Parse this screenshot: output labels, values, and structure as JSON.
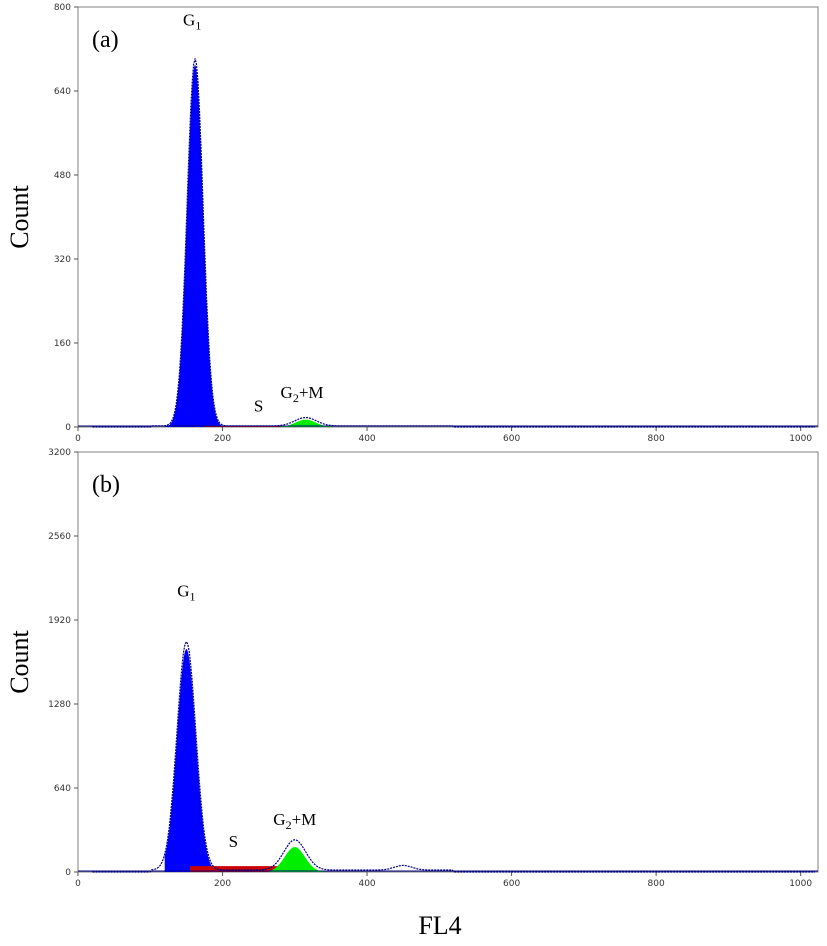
{
  "xlabel": "FL4",
  "chart_data": [
    {
      "type": "area",
      "panel_label": "(a)",
      "ylabel": "Count",
      "xlim": [
        0,
        1024
      ],
      "ylim": [
        0,
        800
      ],
      "xticks": [
        "0",
        "200",
        "400",
        "600",
        "800",
        "1000"
      ],
      "xtick_values": [
        0,
        200,
        400,
        600,
        800,
        1000
      ],
      "yticks": [
        "0",
        "160",
        "320",
        "480",
        "640",
        "800"
      ],
      "ytick_values": [
        0,
        160,
        320,
        480,
        640,
        800
      ],
      "annotations": [
        {
          "base": "G",
          "sub": "1",
          "suffix": "",
          "x": 158,
          "y": 765
        },
        {
          "base": "S",
          "sub": "",
          "suffix": "",
          "x": 250,
          "y": 30
        },
        {
          "base": "G",
          "sub": "2",
          "suffix": "+M",
          "x": 310,
          "y": 55
        }
      ],
      "series": [
        {
          "name": "G1",
          "color": "#0000ff",
          "kind": "gauss",
          "mu": 162,
          "sigma": 11,
          "amp": 690,
          "xmin": 120,
          "xmax": 205
        },
        {
          "name": "S",
          "color": "#cc0000",
          "kind": "flat",
          "xmin": 175,
          "xmax": 300,
          "value": 2
        },
        {
          "name": "G2+M",
          "color": "#00ee00",
          "kind": "gauss",
          "mu": 315,
          "sigma": 14,
          "amp": 14,
          "xmin": 280,
          "xmax": 352
        }
      ],
      "outline": {
        "color": "#000080",
        "peaks": [
          {
            "mu": 162,
            "sigma": 11,
            "amp": 700
          },
          {
            "mu": 315,
            "sigma": 15,
            "amp": 16
          }
        ],
        "baseline": 2
      }
    },
    {
      "type": "area",
      "panel_label": "(b)",
      "ylabel": "Count",
      "xlim": [
        0,
        1024
      ],
      "ylim": [
        0,
        3200
      ],
      "xticks": [
        "0",
        "200",
        "400",
        "600",
        "800",
        "1000"
      ],
      "xtick_values": [
        0,
        200,
        400,
        600,
        800,
        1000
      ],
      "yticks": [
        "0",
        "640",
        "1280",
        "1920",
        "2560",
        "3200"
      ],
      "ytick_values": [
        0,
        640,
        1280,
        1920,
        2560,
        3200
      ],
      "annotations": [
        {
          "base": "G",
          "sub": "1",
          "suffix": "",
          "x": 150,
          "y": 2100
        },
        {
          "base": "S",
          "sub": "",
          "suffix": "",
          "x": 215,
          "y": 190
        },
        {
          "base": "G",
          "sub": "2",
          "suffix": "+M",
          "x": 300,
          "y": 360
        }
      ],
      "series": [
        {
          "name": "G1",
          "color": "#0000ff",
          "kind": "gauss",
          "mu": 150,
          "sigma": 13,
          "amp": 1700,
          "xmin": 120,
          "xmax": 190
        },
        {
          "name": "S",
          "color": "#cc0000",
          "kind": "flat",
          "xmin": 155,
          "xmax": 300,
          "value": 45
        },
        {
          "name": "G2+M",
          "color": "#00ee00",
          "kind": "gauss",
          "mu": 300,
          "sigma": 14,
          "amp": 190,
          "xmin": 265,
          "xmax": 340
        }
      ],
      "outline": {
        "color": "#000080",
        "peaks": [
          {
            "mu": 150,
            "sigma": 13,
            "amp": 1740
          },
          {
            "mu": 300,
            "sigma": 15,
            "amp": 230
          },
          {
            "mu": 450,
            "sigma": 12,
            "amp": 35
          }
        ],
        "baseline": 15
      }
    }
  ]
}
